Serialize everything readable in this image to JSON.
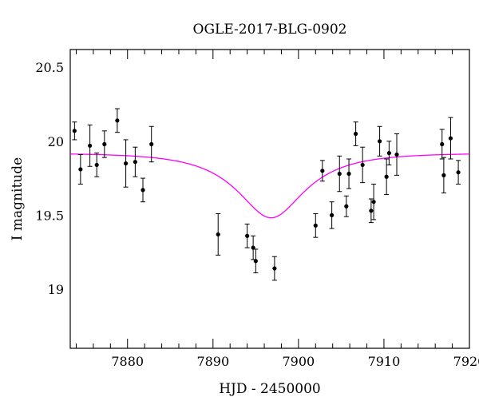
{
  "chart_data": {
    "type": "scatter",
    "title": "OGLE-2017-BLG-0902",
    "xlabel": "HJD - 2450000",
    "ylabel": "I magnitude",
    "xlim": [
      7873.3,
      7920
    ],
    "ylim": [
      20.62,
      18.6
    ],
    "y_inverted": true,
    "x_ticks": [
      7880,
      7890,
      7900,
      7910,
      7920
    ],
    "x_tick_labels": [
      "7880",
      "7890",
      "7900",
      "7910",
      "7920"
    ],
    "y_ticks": [
      19,
      19.5,
      20,
      20.5
    ],
    "y_tick_labels": [
      "19",
      "19.5",
      "20",
      "20.5"
    ],
    "grid": false,
    "colors": {
      "points": "#000000",
      "model": "#ff00ff"
    },
    "series": [
      {
        "type": "scatter_errorbar",
        "x": [
          7873.8,
          7874.5,
          7875.6,
          7876.4,
          7877.3,
          7878.8,
          7879.8,
          7880.9,
          7881.8,
          7882.8,
          7890.6,
          7894.0,
          7894.7,
          7895.0,
          7897.2,
          7902.0,
          7902.8,
          7903.9,
          7904.8,
          7905.6,
          7905.9,
          7906.7,
          7907.5,
          7908.5,
          7908.8,
          7909.5,
          7910.3,
          7910.6,
          7911.5,
          7916.8,
          7917.0,
          7917.8,
          7918.7
        ],
        "y": [
          20.07,
          19.81,
          19.97,
          19.84,
          19.98,
          20.14,
          19.85,
          19.86,
          19.67,
          19.98,
          19.37,
          19.36,
          19.28,
          19.19,
          19.14,
          19.43,
          19.8,
          19.5,
          19.78,
          19.56,
          19.78,
          20.05,
          19.84,
          19.53,
          19.59,
          20.0,
          19.76,
          19.92,
          19.91,
          19.98,
          19.77,
          20.02,
          19.79
        ],
        "err": [
          0.06,
          0.1,
          0.14,
          0.08,
          0.09,
          0.08,
          0.16,
          0.1,
          0.08,
          0.12,
          0.14,
          0.08,
          0.08,
          0.08,
          0.08,
          0.08,
          0.07,
          0.09,
          0.12,
          0.07,
          0.1,
          0.08,
          0.12,
          0.08,
          0.12,
          0.1,
          0.12,
          0.08,
          0.14,
          0.1,
          0.12,
          0.14,
          0.08
        ]
      },
      {
        "type": "line",
        "model": "paczynski",
        "t0": 7896.8,
        "tE": 7.5,
        "u0": 0.5,
        "baseline_mag": 19.92,
        "fs": 0.42
      }
    ]
  }
}
